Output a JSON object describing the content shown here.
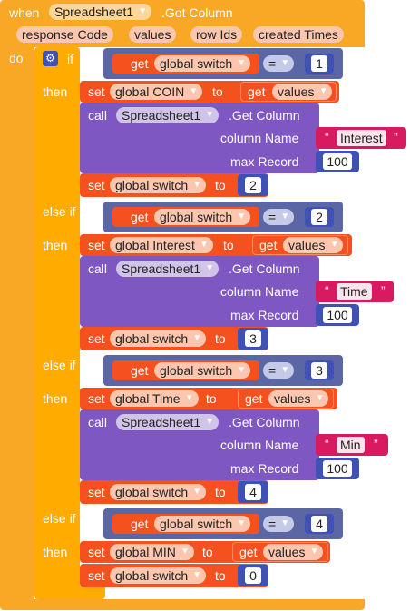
{
  "event": {
    "when_label": "when",
    "component": "Spreadsheet1",
    "event_name": ".Got Column",
    "params": [
      "response Code",
      "values",
      "row Ids",
      "created Times"
    ],
    "do_label": "do"
  },
  "if_block": {
    "if_label": "if",
    "then_label": "then",
    "else_if_label": "else if"
  },
  "common": {
    "get_label": "get",
    "set_label": "set",
    "to_label": "to",
    "call_label": "call",
    "eq_op": "=",
    "global_switch": "global switch",
    "values_param": "values",
    "component": "Spreadsheet1",
    "get_column_method": ".Get Column",
    "column_name_label": "column Name",
    "max_record_label": "max Record",
    "max_record_value": "100",
    "quote_open": "“",
    "quote_close": "”"
  },
  "branches": [
    {
      "compare": "1",
      "set_var": "global COIN",
      "column": "Interest",
      "next_switch": "2"
    },
    {
      "compare": "2",
      "set_var": "global Interest",
      "column": "Time",
      "next_switch": "3"
    },
    {
      "compare": "3",
      "set_var": "global Time",
      "column": "Min",
      "next_switch": "4"
    },
    {
      "compare": "4",
      "set_var": "global MIN",
      "next_switch": "0"
    }
  ],
  "colors": {
    "event": "#f9a825",
    "control": "#ffab00",
    "variable": "#f4511e",
    "procedure_call": "#7e57c2",
    "math": "#3f51b5",
    "logic": "#5b67a5",
    "text": "#d81b60"
  }
}
